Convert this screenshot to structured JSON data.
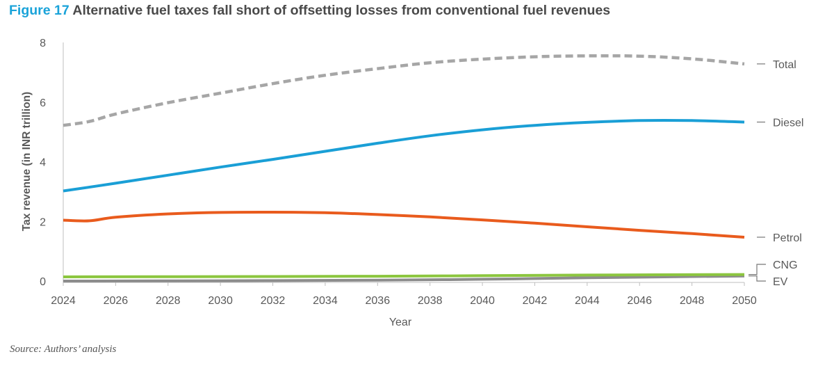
{
  "figure_number": "Figure 17",
  "figure_title": "Alternative fuel taxes fall short of offsetting losses from conventional fuel revenues",
  "source": "Source: Authors’ analysis",
  "colors": {
    "figure_number": "#1aa3d9",
    "title": "#4a4a4a",
    "axis_text": "#595959",
    "axis_line": "#bfbfbf"
  },
  "chart_data": {
    "type": "line",
    "title": "",
    "xlabel": "Year",
    "ylabel": "Tax revenue (in INR trillion)",
    "xlim": [
      2024,
      2050
    ],
    "ylim": [
      0,
      8
    ],
    "xticks": [
      2024,
      2026,
      2028,
      2030,
      2032,
      2034,
      2036,
      2038,
      2040,
      2042,
      2044,
      2046,
      2048,
      2050
    ],
    "yticks": [
      0,
      2,
      4,
      6,
      8
    ],
    "grid": false,
    "legend": "direct labels at right end of lines",
    "series": [
      {
        "name": "Total",
        "color": "#a6a6a6",
        "dashed": true,
        "x": [
          2024,
          2025,
          2026,
          2028,
          2030,
          2032,
          2034,
          2036,
          2038,
          2040,
          2042,
          2044,
          2046,
          2048,
          2050
        ],
        "values": [
          5.22,
          5.35,
          5.6,
          5.98,
          6.3,
          6.62,
          6.9,
          7.12,
          7.32,
          7.44,
          7.52,
          7.55,
          7.54,
          7.45,
          7.28
        ]
      },
      {
        "name": "Diesel",
        "color": "#1a9fd6",
        "dashed": false,
        "x": [
          2024,
          2026,
          2028,
          2030,
          2032,
          2034,
          2036,
          2038,
          2040,
          2042,
          2044,
          2046,
          2048,
          2050
        ],
        "values": [
          3.02,
          3.28,
          3.55,
          3.82,
          4.08,
          4.35,
          4.62,
          4.87,
          5.07,
          5.22,
          5.32,
          5.38,
          5.38,
          5.33
        ]
      },
      {
        "name": "Petrol",
        "color": "#e95b1d",
        "dashed": false,
        "x": [
          2024,
          2025,
          2026,
          2028,
          2030,
          2032,
          2034,
          2036,
          2038,
          2040,
          2042,
          2044,
          2046,
          2048,
          2050
        ],
        "values": [
          2.04,
          2.02,
          2.14,
          2.25,
          2.3,
          2.31,
          2.29,
          2.23,
          2.15,
          2.05,
          1.94,
          1.82,
          1.7,
          1.59,
          1.47
        ]
      },
      {
        "name": "CNG",
        "color": "#8cc63f",
        "dashed": false,
        "x": [
          2024,
          2030,
          2036,
          2040,
          2044,
          2050
        ],
        "values": [
          0.14,
          0.15,
          0.16,
          0.18,
          0.2,
          0.22
        ]
      },
      {
        "name": "EV",
        "color": "#8c8c8c",
        "dashed": false,
        "x": [
          2024,
          2030,
          2036,
          2040,
          2044,
          2050
        ],
        "values": [
          0.0,
          0.01,
          0.03,
          0.06,
          0.11,
          0.17
        ]
      }
    ]
  }
}
